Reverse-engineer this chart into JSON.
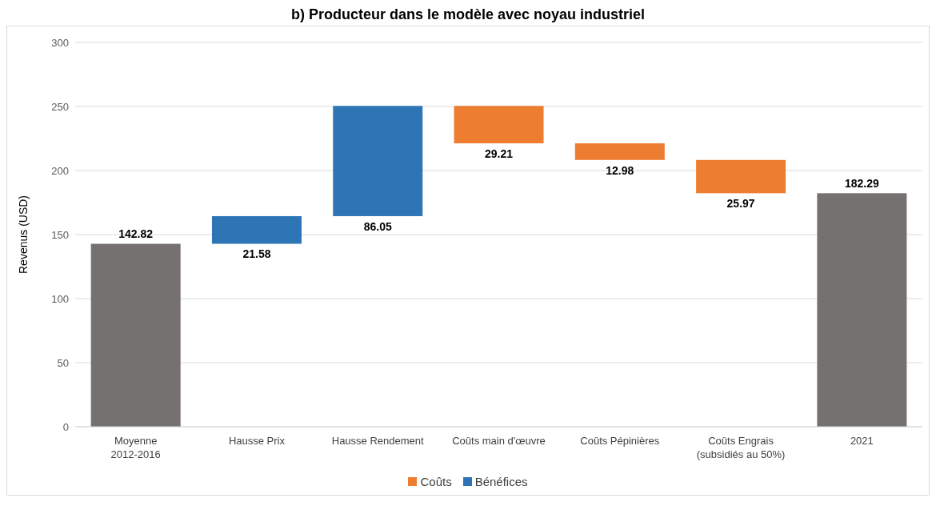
{
  "chart_data": {
    "type": "bar",
    "title": "b) Producteur dans le modèle avec noyau industriel",
    "ylabel": "Revenus (USD)",
    "categories": [
      "Moyenne\n2012-2016",
      "Hausse Prix",
      "Hausse Rendement",
      "Coûts main d'œuvre",
      "Coûts Pépinières",
      "Coûts Engrais\n(subsidiés au 50%)",
      "2021"
    ],
    "series": [
      {
        "color": "#767171",
        "values": [
          142.82,
          null,
          null,
          null,
          null,
          null,
          182.29
        ],
        "base": [
          0,
          null,
          null,
          null,
          null,
          null,
          0
        ]
      },
      {
        "name": "Coûts",
        "color": "#ed7d31",
        "values": [
          null,
          null,
          null,
          29.21,
          12.98,
          25.97,
          null
        ],
        "base": [
          null,
          null,
          null,
          221.24,
          208.26,
          182.29,
          null
        ]
      },
      {
        "name": "Bénéfices",
        "color": "#2e75b6",
        "values": [
          null,
          21.58,
          86.05,
          null,
          null,
          null,
          null
        ],
        "base": [
          null,
          142.82,
          164.4,
          null,
          null,
          null,
          null
        ]
      }
    ],
    "ylim": [
      0,
      300
    ],
    "yticks": [
      0,
      50,
      100,
      150,
      200,
      250,
      300
    ],
    "grid": "y",
    "legend": "bottom",
    "data_labels": true
  }
}
